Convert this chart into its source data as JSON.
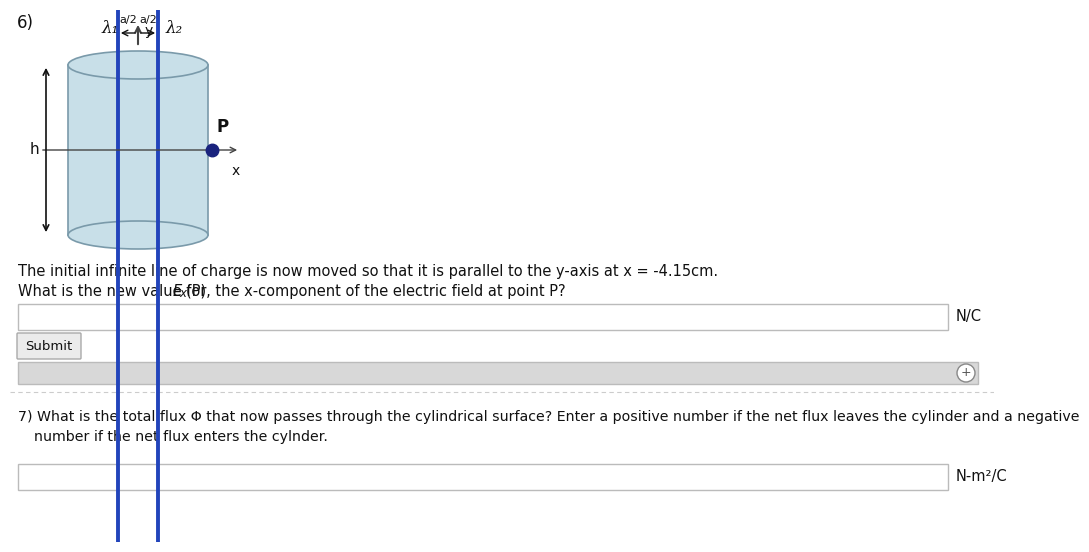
{
  "title_number": "6)",
  "bg_color": "#ffffff",
  "cylinder_color": "#c8dfe8",
  "cylinder_edge_color": "#7a9aaa",
  "line_color": "#2244bb",
  "axis_color": "#444444",
  "point_color": "#1a237e",
  "text_color": "#111111",
  "lambda1": "λ₁",
  "lambda2": "λ₂",
  "label_h": "h",
  "label_P": "P",
  "label_x": "x",
  "label_y": "y",
  "label_a2_left": "a/2",
  "label_a2_right": "a/2",
  "question_line1": "The initial infinite line of charge is now moved so that it is parallel to the y-axis at x = -4.15cm.",
  "question_line2_pre": "What is the new value for ",
  "question_line2_E": "E",
  "question_line2_sub": "x",
  "question_line2_post": "(P), the x-component of the electric field at point P?",
  "unit_nc": "N/C",
  "q7_line1": "7) What is the total flux Φ that now passes through the cylindrical surface? Enter a positive number if the net flux leaves the cylinder and a negative",
  "q7_line2": "    number if the net flux enters the cylnder.",
  "unit_nm2c": "N-m²/C",
  "submit_text": "Submit",
  "divider_color": "#cccccc",
  "input_border": "#bbbbbb",
  "gray_bar_color": "#d8d8d8",
  "gray_bar_border": "#bbbbbb"
}
